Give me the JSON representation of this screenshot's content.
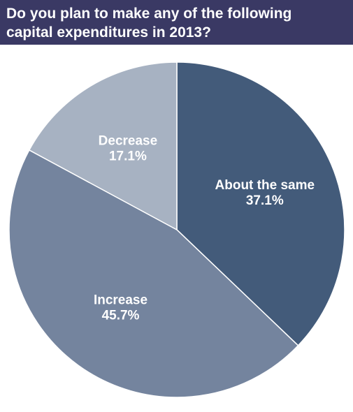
{
  "header": {
    "title_line1": "Do you plan to make any of the following",
    "title_line2": "capital expenditures in 2013?"
  },
  "chart_data": {
    "type": "pie",
    "title": "Do you plan to make any of the following capital expenditures in 2013?",
    "start_angle_deg": 0,
    "direction": "clockwise",
    "slices": [
      {
        "label": "About the same",
        "value": 37.1,
        "value_label": "37.1%",
        "color": "#435b7a"
      },
      {
        "label": "Increase",
        "value": 45.7,
        "value_label": "45.7%",
        "color": "#74849e"
      },
      {
        "label": "Decrease",
        "value": 17.1,
        "value_label": "17.1%",
        "color": "#a7b2c2"
      }
    ]
  }
}
